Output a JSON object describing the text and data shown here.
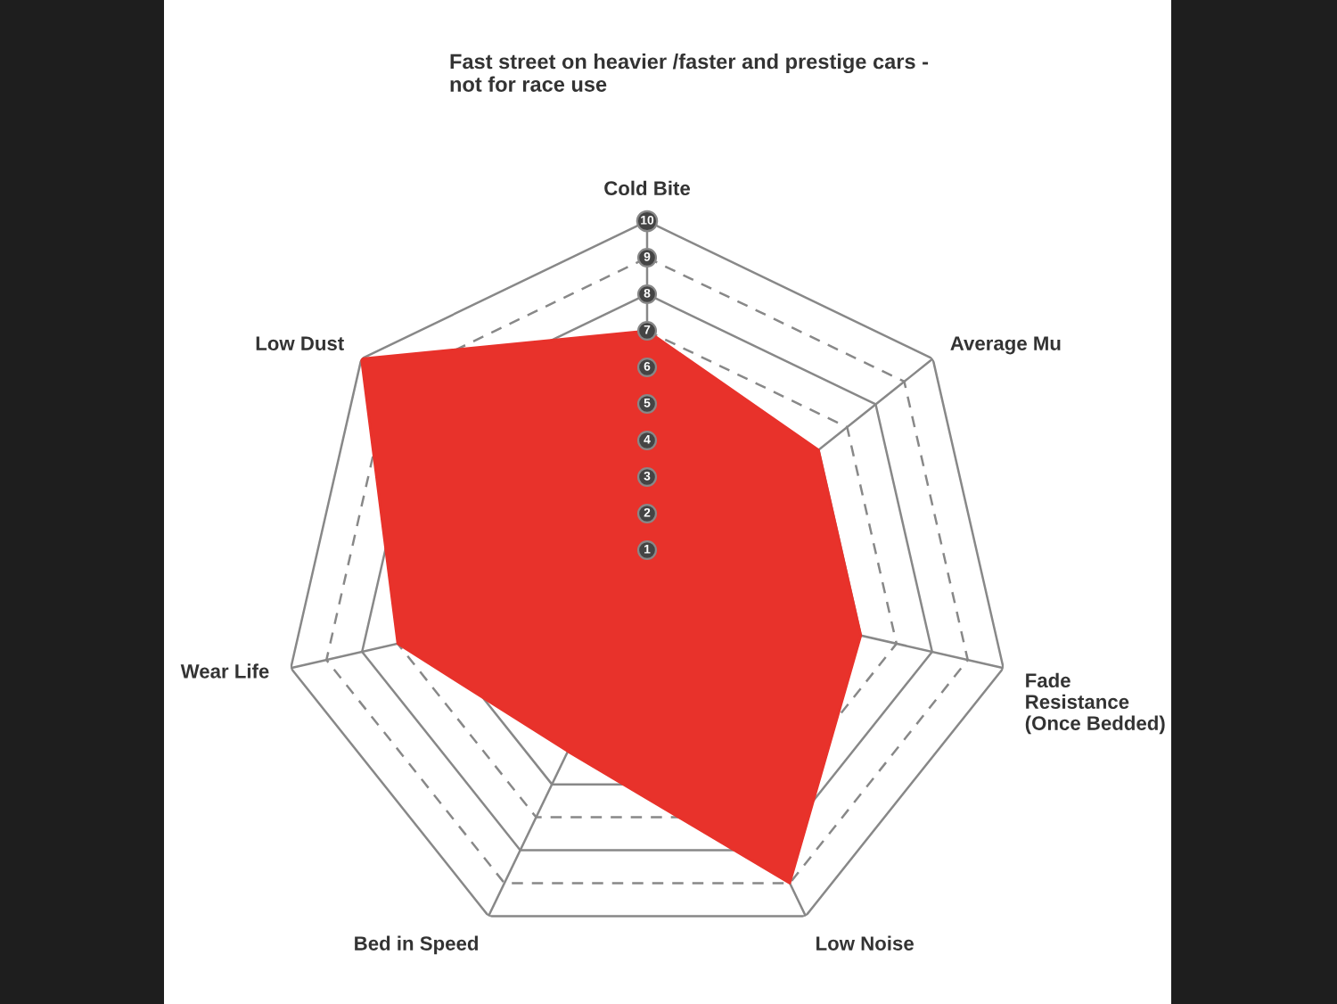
{
  "chart_data": {
    "type": "radar",
    "title": "Fast street on heavier /faster and prestige cars -\nnot for race use",
    "categories": [
      "Cold Bite",
      "Average Mu",
      "Fade\nResistance\n(Once Bedded)",
      "Low Noise",
      "Bed in Speed",
      "Wear Life",
      "Low Dust"
    ],
    "series": [
      {
        "color": "#e8322b",
        "values": [
          7,
          6,
          6,
          9,
          5,
          7,
          10
        ]
      }
    ],
    "ylim": [
      0,
      10
    ],
    "yticks": [
      1,
      2,
      3,
      4,
      5,
      6,
      7,
      8,
      9,
      10
    ],
    "grid": true
  }
}
